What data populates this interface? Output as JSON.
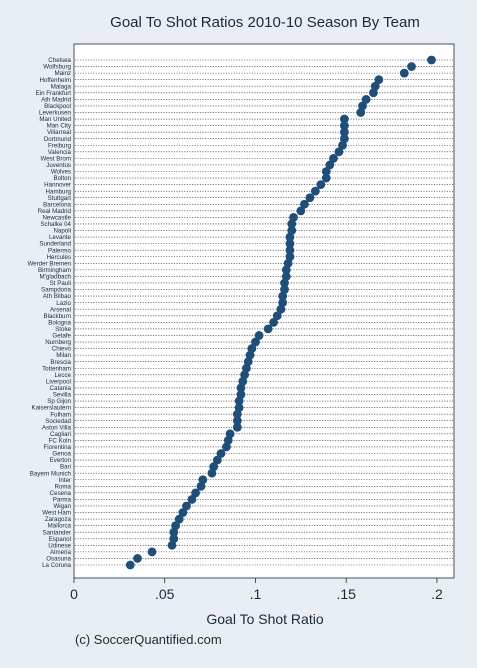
{
  "chart_data": {
    "type": "scatter",
    "title": "Goal To Shot Ratios 2010-10 Season By Team",
    "xlabel": "Goal To Shot Ratio",
    "ylabel": "",
    "xlim": [
      0,
      0.21
    ],
    "xticks": [
      0,
      0.05,
      0.1,
      0.15,
      0.2
    ],
    "xtick_labels": [
      "0",
      ".05",
      ".1",
      ".15",
      ".2"
    ],
    "grid": "dotted horizontal lines per team",
    "marker_color": "#1f4e79",
    "teams": [
      "Chelsea",
      "Wolfsburg",
      "Mainz",
      "Hoffenheim",
      "Malaga",
      "Ein Frankfurt",
      "Ath Madrid",
      "Blackpool",
      "Leverkusen",
      "Man United",
      "Man City",
      "Villarreal",
      "Dortmund",
      "Freiburg",
      "Valencia",
      "West Brom",
      "Juventus",
      "Wolves",
      "Bolton",
      "Hannover",
      "Hamburg",
      "Stuttgart",
      "Barcelona",
      "Real Madrid",
      "Newcastle",
      "Schalke 04",
      "Napoli",
      "Levante",
      "Sunderland",
      "Palermo",
      "Hercules",
      "Werder Bremen",
      "Birmingham",
      "M'gladbach",
      "St Pauli",
      "Sampdoria",
      "Ath Bilbao",
      "Lazio",
      "Arsenal",
      "Blackburn",
      "Bologna",
      "Stoke",
      "Getafe",
      "Nurnberg",
      "Chievo",
      "Milan",
      "Brescia",
      "Tottenham",
      "Lecce",
      "Liverpool",
      "Catania",
      "Sevilla",
      "Sp Gijon",
      "Kaiserslautern",
      "Fulham",
      "Sociedad",
      "Aston Villa",
      "Cagliari",
      "FC Koln",
      "Fiorentina",
      "Genoa",
      "Everton",
      "Bari",
      "Bayern Munich",
      "Inter",
      "Roma",
      "Cesena",
      "Parma",
      "Wigan",
      "West Ham",
      "Zaragoza",
      "Mallorca",
      "Santander",
      "Espanol",
      "Udinese",
      "Almeria",
      "Osasuna",
      "La Coruna"
    ],
    "values": [
      0.197,
      0.186,
      0.182,
      0.168,
      0.166,
      0.165,
      0.161,
      0.159,
      0.158,
      0.149,
      0.149,
      0.149,
      0.149,
      0.148,
      0.146,
      0.143,
      0.141,
      0.139,
      0.139,
      0.136,
      0.133,
      0.13,
      0.127,
      0.125,
      0.121,
      0.12,
      0.12,
      0.119,
      0.119,
      0.119,
      0.119,
      0.118,
      0.117,
      0.117,
      0.116,
      0.116,
      0.115,
      0.115,
      0.114,
      0.112,
      0.11,
      0.107,
      0.102,
      0.1,
      0.098,
      0.097,
      0.096,
      0.095,
      0.094,
      0.093,
      0.092,
      0.092,
      0.091,
      0.091,
      0.09,
      0.09,
      0.09,
      0.086,
      0.085,
      0.084,
      0.081,
      0.079,
      0.077,
      0.076,
      0.071,
      0.07,
      0.067,
      0.065,
      0.062,
      0.06,
      0.058,
      0.056,
      0.055,
      0.055,
      0.054,
      0.043,
      0.035,
      0.031
    ]
  },
  "credit": "(c) SoccerQuantified.com"
}
